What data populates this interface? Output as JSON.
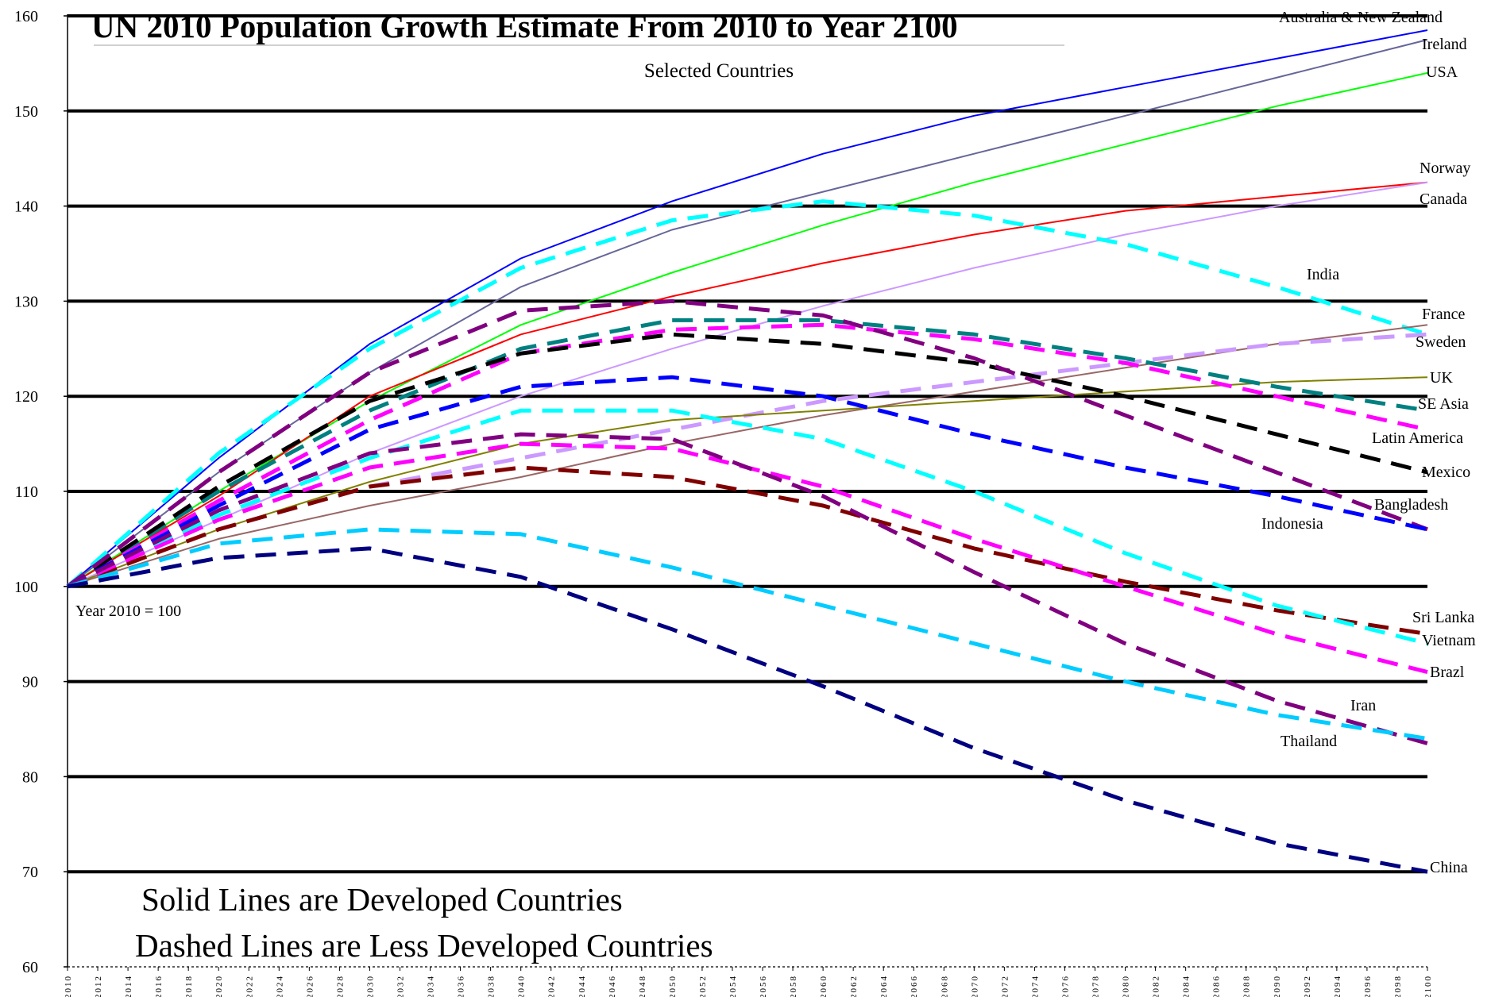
{
  "chart_data": {
    "type": "line",
    "title": "UN 2010 Population Growth Estimate From 2010 to Year 2100",
    "subtitle": "Selected Countries",
    "base_note": "Year 2010 = 100",
    "notes": [
      "Solid Lines are Developed Countries",
      "Dashed Lines are Less Developed Countries"
    ],
    "ylim": [
      60,
      160
    ],
    "yticks": [
      60,
      70,
      80,
      90,
      100,
      110,
      120,
      130,
      140,
      150,
      160
    ],
    "xlim": [
      2010,
      2100
    ],
    "xticks": [
      2010,
      2012,
      2014,
      2016,
      2018,
      2020,
      2022,
      2024,
      2026,
      2028,
      2030,
      2032,
      2034,
      2036,
      2038,
      2040,
      2042,
      2044,
      2046,
      2048,
      2050,
      2052,
      2054,
      2056,
      2058,
      2060,
      2062,
      2064,
      2066,
      2068,
      2070,
      2072,
      2074,
      2076,
      2078,
      2080,
      2082,
      2084,
      2086,
      2088,
      2090,
      2092,
      2094,
      2096,
      2098,
      2100
    ],
    "grid": "horizontal",
    "x": [
      2010,
      2020,
      2030,
      2040,
      2050,
      2060,
      2070,
      2080,
      2090,
      2100
    ],
    "series": [
      {
        "name": "Australia & New Zealand",
        "color": "#0000ff",
        "style": "solid",
        "values": [
          100,
          113.5,
          125.5,
          134.5,
          140.5,
          145.5,
          149.5,
          152.5,
          155.5,
          158.5
        ]
      },
      {
        "name": "Ireland",
        "color": "#666699",
        "style": "solid",
        "values": [
          100,
          112,
          122.5,
          131.5,
          137.5,
          141.5,
          145.5,
          149.5,
          153.5,
          157.5
        ]
      },
      {
        "name": "USA",
        "color": "#00ff00",
        "style": "solid",
        "values": [
          100,
          110,
          119.5,
          127.5,
          133,
          138,
          142.5,
          146.5,
          150.5,
          154
        ]
      },
      {
        "name": "Norway",
        "color": "#ff0000",
        "style": "solid",
        "values": [
          100,
          109.5,
          120,
          126.5,
          130.5,
          134,
          137,
          139.5,
          141,
          142.5
        ]
      },
      {
        "name": "Canada",
        "color": "#cc99ff",
        "style": "solid",
        "values": [
          100,
          107,
          114,
          120,
          125,
          129.5,
          133.5,
          137,
          140,
          142.5
        ]
      },
      {
        "name": "India",
        "color": "#00ffff",
        "style": "dashed",
        "values": [
          100,
          114,
          125,
          133.5,
          138.5,
          140.5,
          139,
          136,
          131.5,
          126.5
        ]
      },
      {
        "name": "France",
        "color": "#996666",
        "style": "solid",
        "values": [
          100,
          105,
          108.5,
          111.5,
          115,
          118,
          120.5,
          123,
          125.5,
          127.5
        ]
      },
      {
        "name": "Sweden",
        "color": "#cc99ff",
        "style": "dashed",
        "values": [
          100,
          106,
          110.5,
          113.5,
          116.5,
          119.5,
          121.5,
          123.5,
          125.5,
          126.5
        ]
      },
      {
        "name": "UK",
        "color": "#808000",
        "style": "solid",
        "values": [
          100,
          106,
          111,
          115,
          117.5,
          118.5,
          119.5,
          120.5,
          121.5,
          122
        ]
      },
      {
        "name": "SE Asia",
        "color": "#008080",
        "style": "dashed",
        "values": [
          100,
          110,
          118.5,
          125,
          128,
          128,
          126.5,
          124,
          121,
          118.5
        ]
      },
      {
        "name": "Latin America",
        "color": "#ff00ff",
        "style": "dashed",
        "values": [
          100,
          109,
          117.5,
          124.5,
          127,
          127.5,
          126,
          123.5,
          120,
          116.5
        ]
      },
      {
        "name": "Mexico",
        "color": "#000000",
        "style": "dashed",
        "values": [
          100,
          110.5,
          119.5,
          124.5,
          126.5,
          125.5,
          123.5,
          120,
          116,
          112
        ]
      },
      {
        "name": "Bangladesh",
        "color": "#800080",
        "style": "dashed",
        "values": [
          100,
          112,
          122.5,
          129,
          130,
          128.5,
          124,
          118,
          112,
          106
        ]
      },
      {
        "name": "Indonesia",
        "color": "#0000ff",
        "style": "dashed",
        "values": [
          100,
          108.5,
          116.5,
          121,
          122,
          120,
          116,
          112.5,
          109.5,
          106
        ]
      },
      {
        "name": "Sri Lanka",
        "color": "#800000",
        "style": "dashed",
        "values": [
          100,
          106,
          110.5,
          112.5,
          111.5,
          108.5,
          104,
          100.5,
          97.5,
          95
        ]
      },
      {
        "name": "Vietnam",
        "color": "#00ffff",
        "style": "dashed",
        "values": [
          100,
          107.5,
          113.5,
          118.5,
          118.5,
          115.5,
          110,
          103.5,
          98,
          94
        ]
      },
      {
        "name": "Brazl",
        "color": "#ff00ff",
        "style": "dashed",
        "values": [
          100,
          107,
          112.5,
          115,
          114.5,
          110.5,
          105,
          100,
          95,
          91
        ]
      },
      {
        "name": "Iran",
        "color": "#800080",
        "style": "dashed",
        "values": [
          100,
          108,
          114,
          116,
          115.5,
          109.5,
          101.5,
          94,
          88,
          83.5
        ]
      },
      {
        "name": "Thailand",
        "color": "#00ccff",
        "style": "dashed",
        "values": [
          100,
          104.5,
          106,
          105.5,
          102,
          98,
          94,
          90,
          86.5,
          84
        ]
      },
      {
        "name": "China",
        "color": "#000080",
        "style": "dashed",
        "values": [
          100,
          103,
          104,
          101,
          95.5,
          89.5,
          83,
          77.5,
          73,
          70
        ]
      }
    ],
    "labels": [
      {
        "text": "Australia & New Zealand"
      },
      {
        "text": "Ireland"
      },
      {
        "text": "USA"
      },
      {
        "text": "Norway"
      },
      {
        "text": "Canada"
      },
      {
        "text": "India"
      },
      {
        "text": "France"
      },
      {
        "text": "Sweden"
      },
      {
        "text": "UK"
      },
      {
        "text": "SE Asia"
      },
      {
        "text": "Latin America"
      },
      {
        "text": "Mexico"
      },
      {
        "text": "Bangladesh"
      },
      {
        "text": "Indonesia"
      },
      {
        "text": "Sri Lanka"
      },
      {
        "text": "Vietnam"
      },
      {
        "text": "Brazl"
      },
      {
        "text": "Iran"
      },
      {
        "text": "Thailand"
      },
      {
        "text": "China"
      }
    ]
  }
}
